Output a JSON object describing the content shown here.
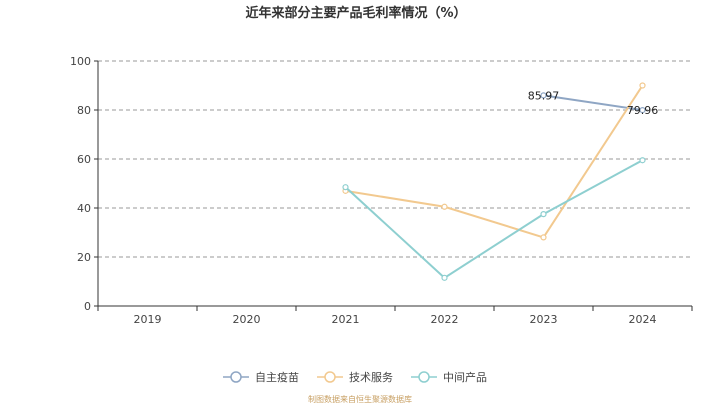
{
  "chart_data": {
    "type": "line",
    "title": "近年来部分主要产品毛利率情况（%）",
    "categories": [
      "2019",
      "2020",
      "2021",
      "2022",
      "2023",
      "2024"
    ],
    "ylim": [
      0,
      100
    ],
    "yticks": [
      0,
      20,
      40,
      60,
      80,
      100
    ],
    "grid": true,
    "legend_position": "bottom",
    "series": [
      {
        "name": "自主疫苗",
        "color": "#8fa6c4",
        "values": [
          null,
          null,
          null,
          null,
          85.97,
          79.96
        ],
        "data_labels": [
          "",
          "",
          "",
          "",
          "85.97",
          "79.96"
        ]
      },
      {
        "name": "技术服务",
        "color": "#f2c98f",
        "values": [
          null,
          null,
          47,
          40.5,
          28,
          90
        ],
        "data_labels": [
          "",
          "",
          "",
          "",
          "",
          ""
        ]
      },
      {
        "name": "中间产品",
        "color": "#8ecfd0",
        "values": [
          null,
          null,
          48.5,
          11.5,
          37.5,
          59.5
        ],
        "data_labels": [
          "",
          "",
          "",
          "",
          "",
          ""
        ]
      }
    ]
  },
  "source_text": "制图数据来自恒生聚源数据库"
}
